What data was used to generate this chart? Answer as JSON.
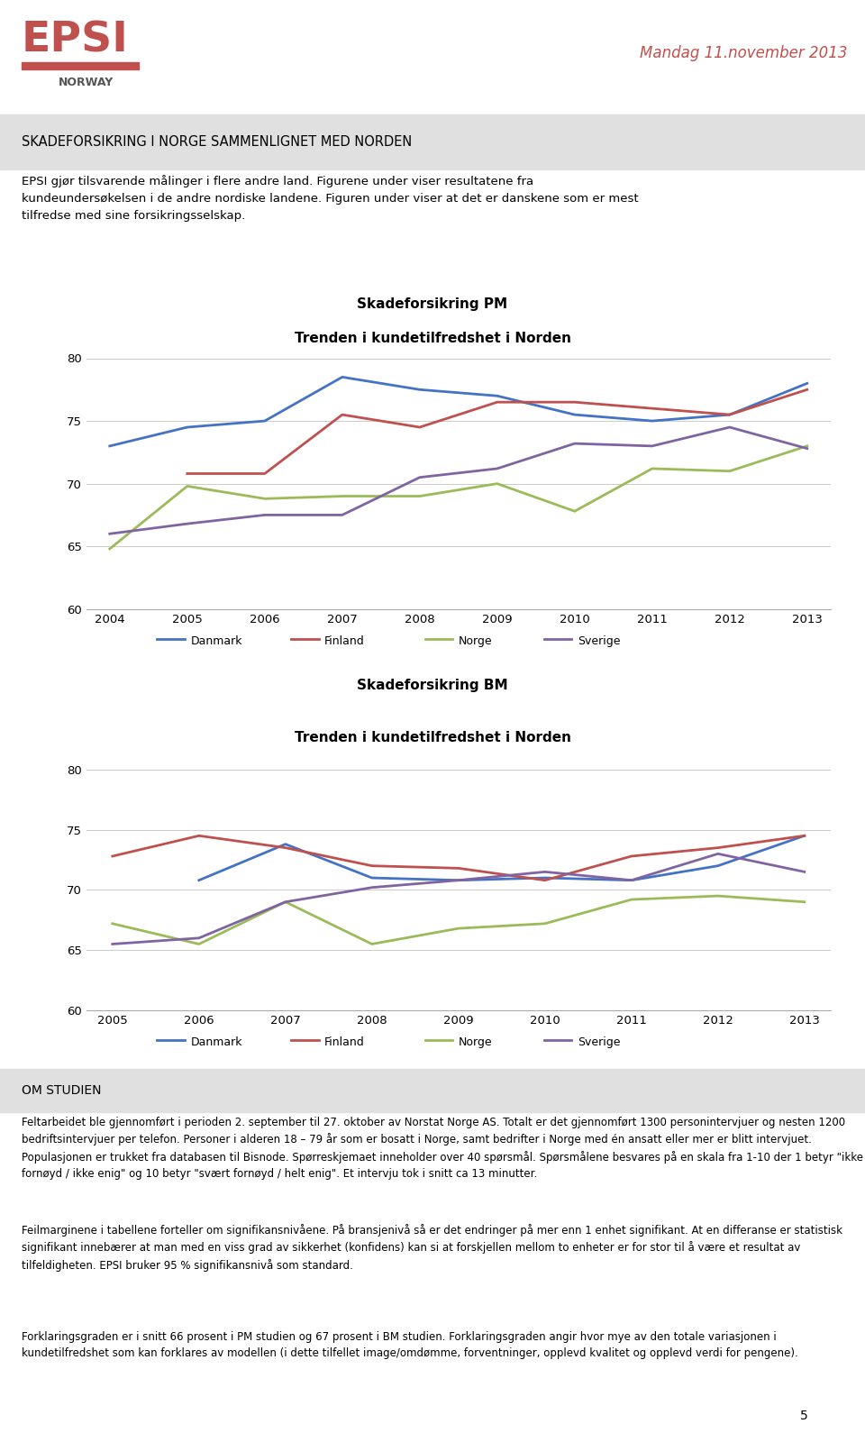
{
  "pm_title1": "Skadeforsikring PM",
  "pm_title2": "Trenden i kundetilfredshet i Norden",
  "bm_title1": "Skadeforsikring BM",
  "bm_title2": "Trenden i kundetilfredshet i Norden",
  "pm_years": [
    2004,
    2005,
    2006,
    2007,
    2008,
    2009,
    2010,
    2011,
    2012,
    2013
  ],
  "bm_years": [
    2005,
    2006,
    2007,
    2008,
    2009,
    2010,
    2011,
    2012,
    2013
  ],
  "pm_Danmark": [
    73.0,
    74.5,
    75.0,
    78.5,
    77.5,
    77.0,
    75.5,
    75.0,
    75.5,
    78.0
  ],
  "pm_Finland": [
    null,
    70.8,
    70.8,
    75.5,
    74.5,
    76.5,
    76.5,
    76.0,
    75.5,
    77.5
  ],
  "pm_Norge": [
    64.8,
    69.8,
    68.8,
    69.0,
    69.0,
    70.0,
    67.8,
    71.2,
    71.0,
    73.0
  ],
  "pm_Sverige": [
    66.0,
    66.8,
    67.5,
    67.5,
    70.5,
    71.2,
    73.2,
    73.0,
    74.5,
    72.8
  ],
  "bm_Danmark": [
    null,
    70.8,
    73.8,
    71.0,
    70.8,
    71.0,
    70.8,
    72.0,
    74.5
  ],
  "bm_Finland": [
    72.8,
    74.5,
    73.5,
    72.0,
    71.8,
    70.8,
    72.8,
    73.5,
    74.5
  ],
  "bm_Norge": [
    67.2,
    65.5,
    69.0,
    65.5,
    66.8,
    67.2,
    69.2,
    69.5,
    69.0
  ],
  "bm_Sverige": [
    65.5,
    66.0,
    69.0,
    70.2,
    70.8,
    71.5,
    70.8,
    73.0,
    71.5
  ],
  "color_Danmark": "#4472C4",
  "color_Finland": "#C0504D",
  "color_Norge": "#9BBB59",
  "color_Sverige": "#8064A2",
  "ylim": [
    60,
    80
  ],
  "yticks": [
    60,
    65,
    70,
    75,
    80
  ],
  "header_title": "SKADEFORSIKRING I NORGE SAMMENLIGNET MED NORDEN",
  "header_text": "EPSI gjør tilsvarende målinger i flere andre land. Figurene under viser resultatene fra\nkundeundersøkelsen i de andre nordiske landene. Figuren under viser at det er danskene som er mest\ntilfredse med sine forsikringsselskap.",
  "om_studien_title": "OM STUDIEN",
  "om_studien_text1": "Feltarbeidet ble gjennomført i perioden 2. september til 27. oktober av Norstat Norge AS. Totalt er det gjennomført 1300 personintervjuer og nesten 1200 bedriftsintervjuer per telefon. Personer i alderen 18 – 79 år som er bosatt i Norge, samt bedrifter i Norge med én ansatt eller mer er blitt intervjuet. Populasjonen er trukket fra databasen til Bisnode. Spørreskjemaet inneholder over 40 spørsmål. Spørsmålene besvares på en skala fra 1-10 der 1 betyr \"ikke fornøyd / ikke enig\" og 10 betyr \"svært fornøyd / helt enig\". Et intervju tok i snitt ca 13 minutter.",
  "om_studien_text2": "Feilmarginene i tabellene forteller om signifikansnivåene. På bransjenivå så er det endringer på mer enn 1 enhet signifikant. At en differanse er statistisk signifikant innebærer at man med en viss grad av sikkerhet (konfidens) kan si at forskjellen mellom to enheter er for stor til å være et resultat av tilfeldigheten. EPSI bruker 95 % signifikansnivå som standard.",
  "om_studien_text3": "Forklaringsgraden er i snitt 66 prosent i PM studien og 67 prosent i BM studien. Forklaringsgraden angir hvor mye av den totale variasjonen i kundetilfredshet som kan forklares av modellen (i dette tilfellet image/omdømme, forventninger, opplevd kvalitet og opplevd verdi for pengene).",
  "date_text": "Mandag 11.november 2013",
  "page_number": "5",
  "legend_labels": [
    "Danmark",
    "Finland",
    "Norge",
    "Sverige"
  ],
  "line_width": 2.0
}
